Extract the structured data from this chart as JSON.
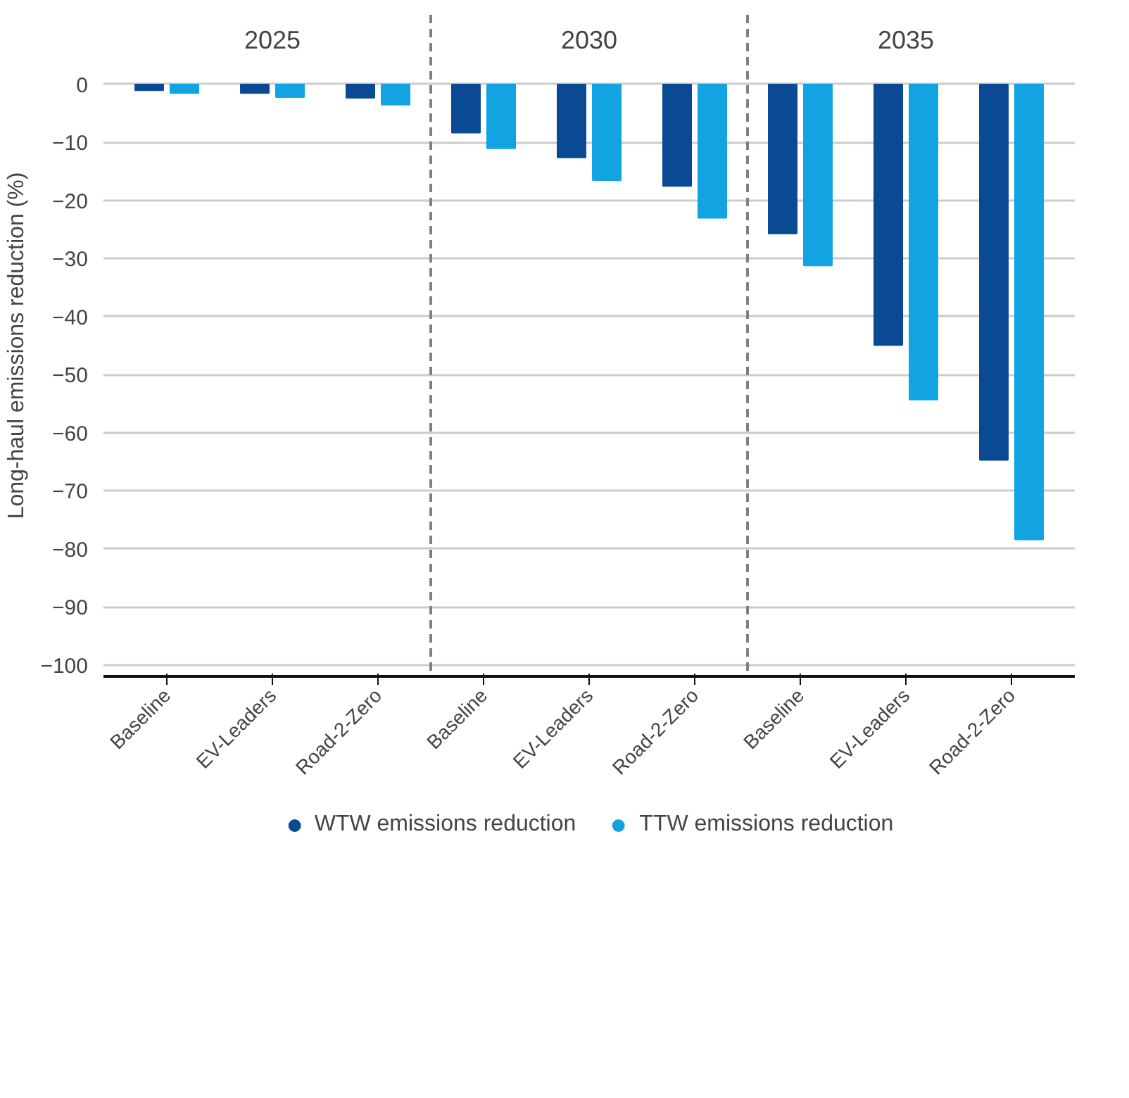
{
  "chart_data": {
    "type": "bar",
    "ylabel": "Long-haul emissions reduction (%)",
    "categories": [
      "Baseline",
      "EV-Leaders",
      "Road-2-Zero",
      "Baseline",
      "EV-Leaders",
      "Road-2-Zero",
      "Baseline",
      "EV-Leaders",
      "Road-2-Zero"
    ],
    "series": [
      {
        "name": "WTW emissions reduction",
        "color": "#0a4a94",
        "values": [
          -1.0,
          -1.5,
          -2.3,
          -8.3,
          -12.6,
          -17.5,
          -25.7,
          -44.9,
          -64.7
        ]
      },
      {
        "name": "TTW emissions reduction",
        "color": "#12a3e3",
        "values": [
          -1.5,
          -2.2,
          -3.5,
          -11.0,
          -16.5,
          -23.0,
          -31.2,
          -54.3,
          -78.4
        ]
      }
    ],
    "annotations": [
      "2025",
      "2030",
      "2035"
    ],
    "ylim": [
      -102,
      12
    ],
    "yticks": [
      0,
      -10,
      -20,
      -30,
      -40,
      -50,
      -60,
      -70,
      -80,
      -90,
      -100
    ],
    "grid": "y",
    "legend": "bottom"
  }
}
